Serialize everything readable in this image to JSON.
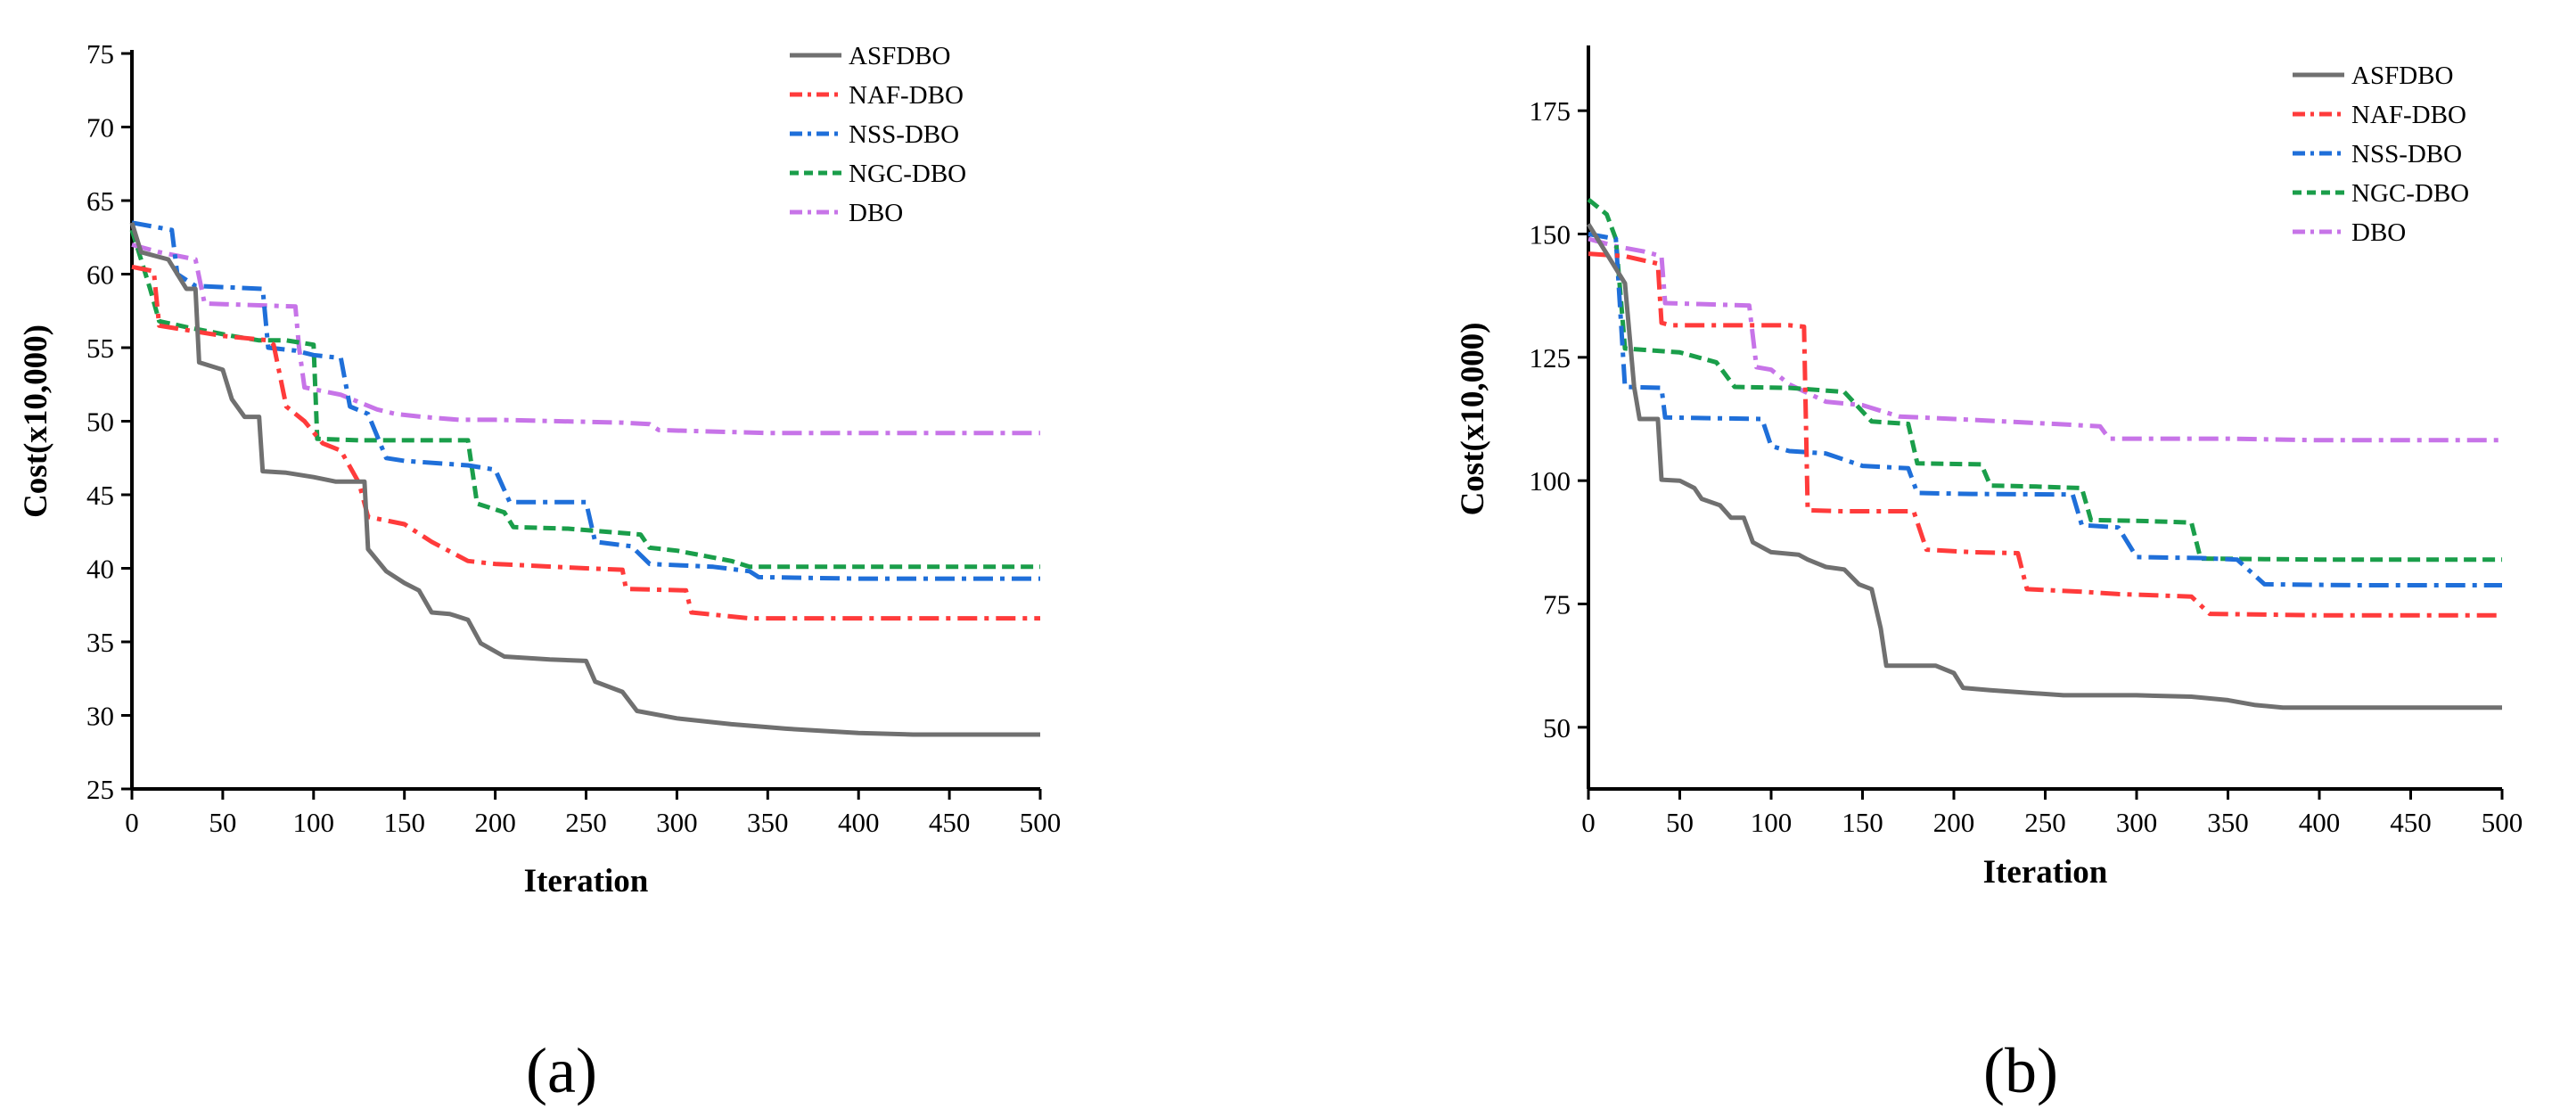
{
  "chart_data": [
    {
      "type": "line",
      "panel_label": "(a)",
      "title": "",
      "xlabel": "Iteration",
      "ylabel": "Cost(x10,000)",
      "xlim": [
        0,
        500
      ],
      "ylim": [
        25,
        75
      ],
      "xticks": [
        0,
        50,
        100,
        150,
        200,
        250,
        300,
        350,
        400,
        450,
        500
      ],
      "yticks": [
        25,
        30,
        35,
        40,
        45,
        50,
        55,
        60,
        65,
        70,
        75
      ],
      "legend_position": "top-right",
      "series": [
        {
          "name": "ASFDBO",
          "color": "#707070",
          "dash": "solid",
          "points": [
            [
              0,
              63.5
            ],
            [
              5,
              61.5
            ],
            [
              20,
              61
            ],
            [
              30,
              59
            ],
            [
              35,
              59
            ],
            [
              37,
              54
            ],
            [
              50,
              53.5
            ],
            [
              55,
              51.5
            ],
            [
              62,
              50.3
            ],
            [
              70,
              50.3
            ],
            [
              72,
              46.6
            ],
            [
              85,
              46.5
            ],
            [
              100,
              46.2
            ],
            [
              112,
              45.9
            ],
            [
              128,
              45.9
            ],
            [
              130,
              41.3
            ],
            [
              140,
              39.8
            ],
            [
              150,
              39
            ],
            [
              158,
              38.5
            ],
            [
              165,
              37
            ],
            [
              175,
              36.9
            ],
            [
              185,
              36.5
            ],
            [
              192,
              34.9
            ],
            [
              205,
              34
            ],
            [
              230,
              33.8
            ],
            [
              250,
              33.7
            ],
            [
              255,
              32.3
            ],
            [
              270,
              31.6
            ],
            [
              278,
              30.3
            ],
            [
              300,
              29.8
            ],
            [
              330,
              29.4
            ],
            [
              360,
              29.1
            ],
            [
              400,
              28.8
            ],
            [
              430,
              28.7
            ],
            [
              500,
              28.7
            ]
          ]
        },
        {
          "name": "NAF-DBO",
          "color": "#ff3b3b",
          "dash": "dashdot",
          "points": [
            [
              0,
              60.5
            ],
            [
              12,
              60.2
            ],
            [
              15,
              56.5
            ],
            [
              30,
              56.2
            ],
            [
              50,
              55.8
            ],
            [
              75,
              55.5
            ],
            [
              78,
              55.2
            ],
            [
              85,
              51
            ],
            [
              95,
              50
            ],
            [
              105,
              48.5
            ],
            [
              115,
              48
            ],
            [
              125,
              45.8
            ],
            [
              130,
              43.5
            ],
            [
              150,
              43
            ],
            [
              165,
              41.8
            ],
            [
              185,
              40.5
            ],
            [
              200,
              40.3
            ],
            [
              250,
              40
            ],
            [
              270,
              39.9
            ],
            [
              272,
              38.6
            ],
            [
              305,
              38.5
            ],
            [
              308,
              37
            ],
            [
              340,
              36.6
            ],
            [
              350,
              36.6
            ],
            [
              500,
              36.6
            ]
          ]
        },
        {
          "name": "NSS-DBO",
          "color": "#1f6fd9",
          "dash": "dashdot",
          "points": [
            [
              0,
              63.5
            ],
            [
              22,
              63
            ],
            [
              25,
              60
            ],
            [
              35,
              59.2
            ],
            [
              72,
              59
            ],
            [
              75,
              55
            ],
            [
              90,
              54.8
            ],
            [
              100,
              54.5
            ],
            [
              115,
              54.3
            ],
            [
              120,
              51
            ],
            [
              130,
              50.5
            ],
            [
              140,
              47.5
            ],
            [
              150,
              47.3
            ],
            [
              185,
              47
            ],
            [
              200,
              46.7
            ],
            [
              208,
              44.5
            ],
            [
              250,
              44.5
            ],
            [
              255,
              41.8
            ],
            [
              275,
              41.5
            ],
            [
              285,
              40.3
            ],
            [
              320,
              40.1
            ],
            [
              340,
              39.8
            ],
            [
              345,
              39.4
            ],
            [
              400,
              39.3
            ],
            [
              500,
              39.3
            ]
          ]
        },
        {
          "name": "NGC-DBO",
          "color": "#1a9e4a",
          "dash": "dashed",
          "points": [
            [
              0,
              63
            ],
            [
              10,
              59
            ],
            [
              15,
              56.8
            ],
            [
              30,
              56.4
            ],
            [
              55,
              55.8
            ],
            [
              70,
              55.5
            ],
            [
              85,
              55.5
            ],
            [
              100,
              55.2
            ],
            [
              102,
              48.8
            ],
            [
              125,
              48.7
            ],
            [
              185,
              48.7
            ],
            [
              190,
              44.4
            ],
            [
              205,
              43.8
            ],
            [
              210,
              42.8
            ],
            [
              240,
              42.7
            ],
            [
              280,
              42.3
            ],
            [
              285,
              41.4
            ],
            [
              300,
              41.2
            ],
            [
              330,
              40.5
            ],
            [
              340,
              40.1
            ],
            [
              400,
              40.1
            ],
            [
              500,
              40.1
            ]
          ]
        },
        {
          "name": "DBO",
          "color": "#c774e8",
          "dash": "dashdot",
          "points": [
            [
              0,
              62
            ],
            [
              15,
              61.5
            ],
            [
              35,
              61
            ],
            [
              40,
              58
            ],
            [
              90,
              57.8
            ],
            [
              92,
              55
            ],
            [
              95,
              52.3
            ],
            [
              115,
              51.8
            ],
            [
              135,
              50.8
            ],
            [
              145,
              50.5
            ],
            [
              160,
              50.3
            ],
            [
              180,
              50.1
            ],
            [
              200,
              50.1
            ],
            [
              270,
              49.9
            ],
            [
              285,
              49.8
            ],
            [
              290,
              49.4
            ],
            [
              320,
              49.3
            ],
            [
              350,
              49.2
            ],
            [
              360,
              49.2
            ],
            [
              500,
              49.2
            ]
          ]
        }
      ]
    },
    {
      "type": "line",
      "panel_label": "(b)",
      "title": "",
      "xlabel": "Iteration",
      "ylabel": "Cost(x10,000)",
      "xlim": [
        0,
        500
      ],
      "ylim": [
        37.5,
        187.5
      ],
      "xticks": [
        0,
        50,
        100,
        150,
        200,
        250,
        300,
        350,
        400,
        450,
        500
      ],
      "yticks": [
        50,
        75,
        100,
        125,
        150,
        175
      ],
      "legend_position": "top-right",
      "series": [
        {
          "name": "ASFDBO",
          "color": "#707070",
          "dash": "solid",
          "points": [
            [
              0,
              152
            ],
            [
              10,
              146
            ],
            [
              20,
              140
            ],
            [
              25,
              119
            ],
            [
              28,
              112.5
            ],
            [
              38,
              112.5
            ],
            [
              40,
              100.2
            ],
            [
              50,
              100
            ],
            [
              58,
              98.5
            ],
            [
              62,
              96.3
            ],
            [
              72,
              95
            ],
            [
              78,
              92.5
            ],
            [
              85,
              92.5
            ],
            [
              90,
              87.5
            ],
            [
              95,
              86.5
            ],
            [
              100,
              85.5
            ],
            [
              115,
              85
            ],
            [
              120,
              84
            ],
            [
              130,
              82.5
            ],
            [
              140,
              82
            ],
            [
              148,
              79
            ],
            [
              155,
              78
            ],
            [
              160,
              70
            ],
            [
              163,
              62.5
            ],
            [
              190,
              62.5
            ],
            [
              200,
              61
            ],
            [
              205,
              58
            ],
            [
              220,
              57.5
            ],
            [
              240,
              57
            ],
            [
              260,
              56.5
            ],
            [
              300,
              56.5
            ],
            [
              330,
              56.2
            ],
            [
              350,
              55.5
            ],
            [
              365,
              54.5
            ],
            [
              380,
              54
            ],
            [
              500,
              54
            ]
          ]
        },
        {
          "name": "NAF-DBO",
          "color": "#ff3b3b",
          "dash": "dashdot",
          "points": [
            [
              0,
              146
            ],
            [
              20,
              145.5
            ],
            [
              38,
              144
            ],
            [
              40,
              132
            ],
            [
              45,
              131.5
            ],
            [
              110,
              131.5
            ],
            [
              118,
              131.2
            ],
            [
              120,
              94
            ],
            [
              140,
              93.8
            ],
            [
              178,
              93.8
            ],
            [
              185,
              86
            ],
            [
              210,
              85.5
            ],
            [
              235,
              85.3
            ],
            [
              240,
              78
            ],
            [
              270,
              77.5
            ],
            [
              290,
              77
            ],
            [
              330,
              76.5
            ],
            [
              340,
              73
            ],
            [
              400,
              72.7
            ],
            [
              500,
              72.7
            ]
          ]
        },
        {
          "name": "NSS-DBO",
          "color": "#1f6fd9",
          "dash": "dashdot",
          "points": [
            [
              0,
              150
            ],
            [
              15,
              149
            ],
            [
              20,
              119
            ],
            [
              40,
              118.8
            ],
            [
              42,
              112.8
            ],
            [
              95,
              112.5
            ],
            [
              100,
              107
            ],
            [
              110,
              106
            ],
            [
              130,
              105.5
            ],
            [
              150,
              103
            ],
            [
              175,
              102.5
            ],
            [
              180,
              97.5
            ],
            [
              210,
              97.3
            ],
            [
              265,
              97.2
            ],
            [
              270,
              91
            ],
            [
              290,
              90.5
            ],
            [
              300,
              84.5
            ],
            [
              335,
              84.3
            ],
            [
              355,
              84
            ],
            [
              370,
              79
            ],
            [
              420,
              78.8
            ],
            [
              500,
              78.8
            ]
          ]
        },
        {
          "name": "NGC-DBO",
          "color": "#1a9e4a",
          "dash": "dashed",
          "points": [
            [
              0,
              157
            ],
            [
              10,
              154
            ],
            [
              15,
              149
            ],
            [
              20,
              126.8
            ],
            [
              50,
              126
            ],
            [
              70,
              124
            ],
            [
              80,
              119
            ],
            [
              110,
              118.8
            ],
            [
              140,
              118
            ],
            [
              155,
              112
            ],
            [
              175,
              111.5
            ],
            [
              180,
              103.5
            ],
            [
              215,
              103.3
            ],
            [
              220,
              99
            ],
            [
              245,
              98.8
            ],
            [
              270,
              98.5
            ],
            [
              275,
              92
            ],
            [
              305,
              91.8
            ],
            [
              330,
              91.5
            ],
            [
              335,
              84.2
            ],
            [
              400,
              84
            ],
            [
              500,
              84
            ]
          ]
        },
        {
          "name": "DBO",
          "color": "#c774e8",
          "dash": "dashdot",
          "points": [
            [
              0,
              149
            ],
            [
              15,
              147.5
            ],
            [
              30,
              146.5
            ],
            [
              40,
              145.5
            ],
            [
              42,
              136
            ],
            [
              88,
              135.5
            ],
            [
              92,
              123
            ],
            [
              100,
              122.5
            ],
            [
              110,
              119.5
            ],
            [
              130,
              116
            ],
            [
              150,
              115.3
            ],
            [
              170,
              113
            ],
            [
              200,
              112.5
            ],
            [
              255,
              111.5
            ],
            [
              280,
              111
            ],
            [
              285,
              108.5
            ],
            [
              350,
              108.5
            ],
            [
              400,
              108.2
            ],
            [
              500,
              108.2
            ]
          ]
        }
      ]
    }
  ]
}
